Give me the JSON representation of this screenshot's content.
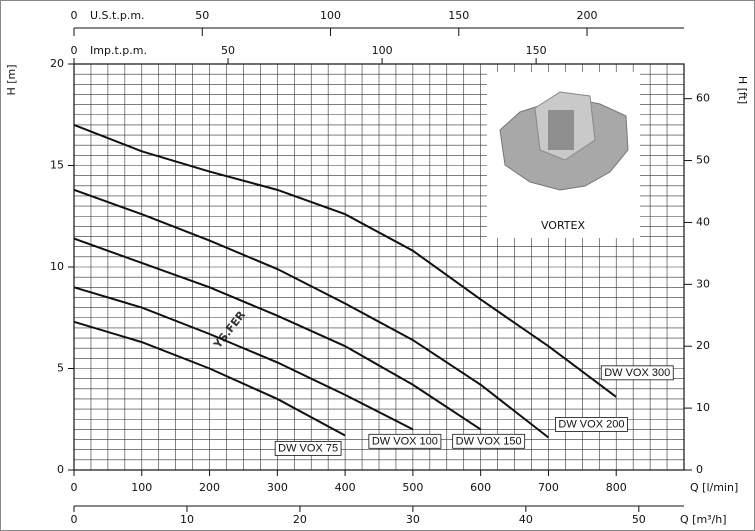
{
  "chart_data": {
    "type": "line",
    "ylabel": "H [m]",
    "xlabel": "Q [l/min]",
    "xlim": [
      0,
      900
    ],
    "xticks": [
      0,
      100,
      200,
      300,
      400,
      500,
      600,
      700,
      800
    ],
    "ylim": [
      0,
      20
    ],
    "yticks": [
      0,
      5,
      10,
      15,
      20
    ],
    "y2label": "H [ft]",
    "y2lim": [
      0,
      65.6
    ],
    "y2ticks": [
      0,
      10,
      20,
      30,
      40,
      50,
      60
    ],
    "grid": true,
    "minor_grid": {
      "x": 25,
      "y": 0.5
    },
    "top_axes": [
      {
        "label": "U.S.t.p.m.",
        "lim": [
          0,
          237.8
        ],
        "ticks": [
          0,
          50,
          100,
          150,
          200
        ]
      },
      {
        "label": "Imp.t.p.m.",
        "lim": [
          0,
          198
        ],
        "ticks": [
          0,
          50,
          100,
          150
        ]
      }
    ],
    "bottom_axis2": {
      "label": "Q [m³/h]",
      "lim": [
        0,
        54
      ],
      "ticks": [
        0,
        10,
        20,
        30,
        40,
        50
      ]
    },
    "image_caption": "VORTEX",
    "watermark": "YS.FER",
    "series": [
      {
        "name": "DW VOX 75",
        "color": "#111111",
        "x": [
          0,
          100,
          200,
          300,
          400
        ],
        "values": [
          7.3,
          6.3,
          5.0,
          3.5,
          1.7
        ]
      },
      {
        "name": "DW VOX 100",
        "color": "#111111",
        "x": [
          0,
          100,
          200,
          300,
          400,
          500
        ],
        "values": [
          9.0,
          8.0,
          6.7,
          5.3,
          3.7,
          2.0
        ]
      },
      {
        "name": "DW VOX 150",
        "color": "#111111",
        "x": [
          0,
          100,
          200,
          300,
          400,
          500,
          600
        ],
        "values": [
          11.4,
          10.2,
          9.0,
          7.6,
          6.1,
          4.2,
          2.0
        ]
      },
      {
        "name": "DW VOX 200",
        "color": "#111111",
        "x": [
          0,
          100,
          200,
          300,
          400,
          500,
          600,
          700
        ],
        "values": [
          13.8,
          12.6,
          11.3,
          9.9,
          8.2,
          6.4,
          4.2,
          1.6
        ]
      },
      {
        "name": "DW VOX 300",
        "color": "#111111",
        "x": [
          0,
          100,
          200,
          300,
          400,
          500,
          600,
          700,
          800
        ],
        "values": [
          17.0,
          15.7,
          14.7,
          13.8,
          12.6,
          10.8,
          8.4,
          6.1,
          3.6
        ]
      }
    ]
  }
}
